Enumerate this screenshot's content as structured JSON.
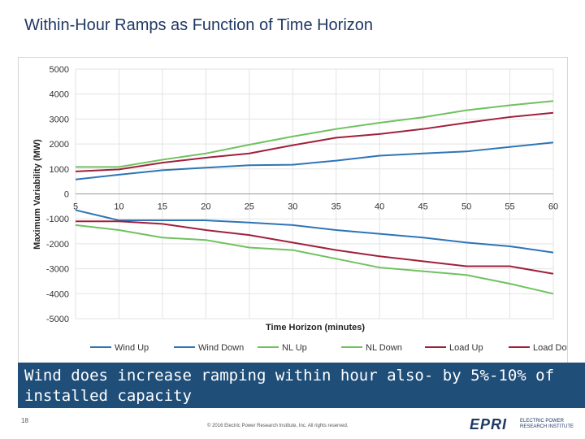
{
  "slide": {
    "title": "Within-Hour Ramps as Function of Time Horizon",
    "callout": "Wind does increase ramping within hour also- by 5%-10% of installed capacity",
    "page_number": "18",
    "copyright": "© 2016 Electric Power Research Institute, Inc. All rights reserved.",
    "logo_text": "EPRI",
    "logo_subtitle_1": "ELECTRIC POWER",
    "logo_subtitle_2": "RESEARCH INSTITUTE"
  },
  "colors": {
    "title": "#1f3864",
    "callout_bg": "#1f4e79",
    "wind": "#2e75b6",
    "nl": "#70c160",
    "load": "#a0203c"
  },
  "chart_data": {
    "type": "line",
    "xlabel": "Time Horizon (minutes)",
    "ylabel": "Maximum Variability (MW)",
    "x": [
      5,
      10,
      15,
      20,
      25,
      30,
      35,
      40,
      45,
      50,
      55,
      60
    ],
    "xticks": [
      5,
      10,
      15,
      20,
      25,
      30,
      35,
      40,
      45,
      50,
      55,
      60
    ],
    "yticks": [
      -5000,
      -4000,
      -3000,
      -2000,
      -1000,
      0,
      1000,
      2000,
      3000,
      4000,
      5000
    ],
    "ylim": [
      -5000,
      5000
    ],
    "grid": true,
    "legend": "bottom",
    "series": [
      {
        "name": "Wind Up",
        "color": "#2e75b6",
        "values": [
          580,
          770,
          950,
          1050,
          1150,
          1170,
          1330,
          1530,
          1620,
          1700,
          1880,
          2060
        ]
      },
      {
        "name": "Wind Down",
        "color": "#2e75b6",
        "values": [
          -650,
          -1060,
          -1060,
          -1060,
          -1150,
          -1250,
          -1450,
          -1600,
          -1750,
          -1950,
          -2100,
          -2350
        ]
      },
      {
        "name": "NL Up",
        "color": "#70c160",
        "values": [
          1080,
          1080,
          1370,
          1620,
          1970,
          2300,
          2600,
          2850,
          3070,
          3350,
          3550,
          3720
        ]
      },
      {
        "name": "NL Down",
        "color": "#70c160",
        "values": [
          -1250,
          -1450,
          -1750,
          -1850,
          -2150,
          -2250,
          -2600,
          -2950,
          -3100,
          -3250,
          -3600,
          -4000
        ]
      },
      {
        "name": "Load Up",
        "color": "#a0203c",
        "values": [
          900,
          980,
          1250,
          1450,
          1620,
          1950,
          2250,
          2400,
          2600,
          2850,
          3080,
          3250
        ]
      },
      {
        "name": "Load Down",
        "color": "#a0203c",
        "values": [
          -1100,
          -1100,
          -1200,
          -1450,
          -1650,
          -1950,
          -2250,
          -2500,
          -2700,
          -2900,
          -2900,
          -3200
        ]
      }
    ]
  }
}
